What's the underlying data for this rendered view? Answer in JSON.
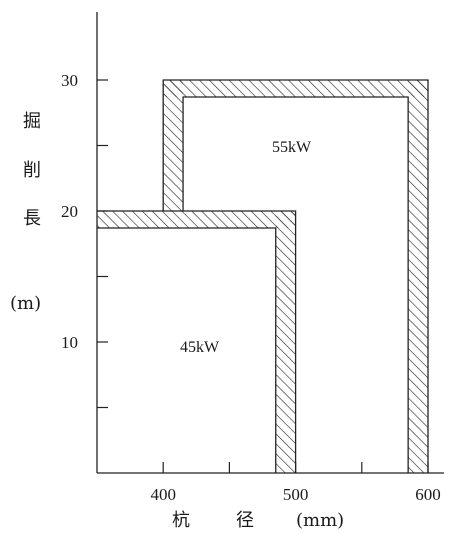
{
  "chart_data": {
    "type": "region",
    "xlim": [
      350,
      600
    ],
    "ylim": [
      0,
      30
    ],
    "x_ticks": [
      {
        "value": 400,
        "label": "400"
      },
      {
        "value": 450,
        "label": ""
      },
      {
        "value": 500,
        "label": "500"
      },
      {
        "value": 550,
        "label": ""
      },
      {
        "value": 600,
        "label": "600"
      }
    ],
    "y_ticks": [
      {
        "value": 5,
        "label": ""
      },
      {
        "value": 10,
        "label": "10"
      },
      {
        "value": 15,
        "label": ""
      },
      {
        "value": 20,
        "label": "20"
      },
      {
        "value": 25,
        "label": ""
      },
      {
        "value": 30,
        "label": "30"
      }
    ],
    "xlabel": [
      "杭",
      "径",
      "(mm)"
    ],
    "ylabel": [
      "掘",
      "削",
      "長",
      "(m)"
    ],
    "regions": [
      {
        "name": "45kW",
        "x_max": 500,
        "y_max": 20
      },
      {
        "name": "55kW",
        "x_min": 400,
        "x_max": 600,
        "y_min": 20,
        "y_max": 30
      }
    ],
    "hatch_width_mm": 15,
    "hatch_width_m": 1.3
  }
}
